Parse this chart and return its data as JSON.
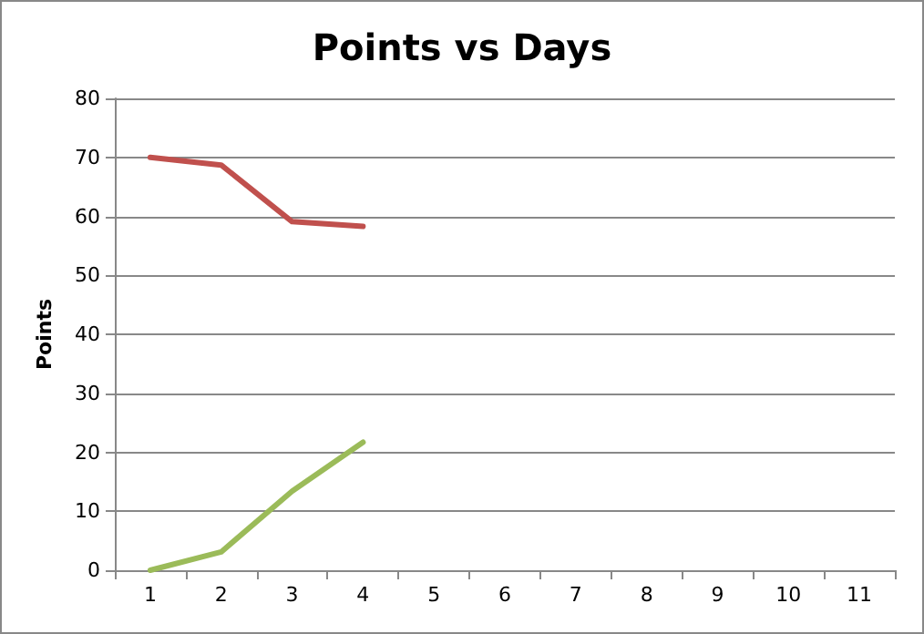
{
  "chart_data": {
    "type": "line",
    "title": "Points vs Days",
    "ylabel": "Points",
    "categories": [
      "1",
      "2",
      "3",
      "4",
      "5",
      "6",
      "7",
      "8",
      "9",
      "10",
      "11"
    ],
    "series": [
      {
        "color": "#c0504d",
        "values": [
          70,
          68.7,
          59.1,
          58.3,
          null,
          null,
          null,
          null,
          null,
          null,
          null
        ]
      },
      {
        "color": "#9bbb59",
        "values": [
          0,
          3.1,
          13.4,
          21.7,
          null,
          null,
          null,
          null,
          null,
          null,
          null
        ]
      }
    ],
    "ylim": [
      0,
      80
    ],
    "yticks": [
      0,
      10,
      20,
      30,
      40,
      50,
      60,
      70,
      80
    ],
    "grid": "y",
    "marker": "none",
    "line_style": "solid"
  }
}
